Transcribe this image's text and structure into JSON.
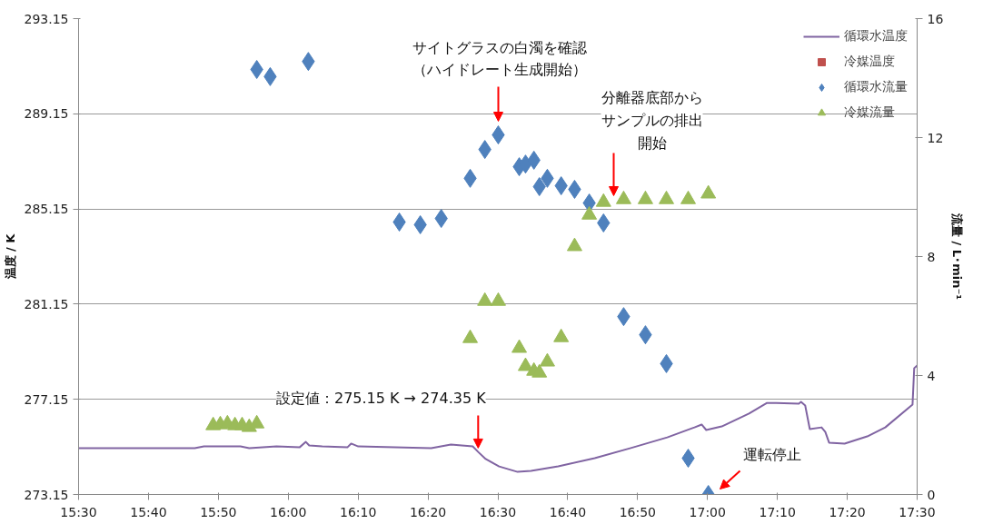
{
  "chart_data": {
    "type": "line",
    "xlabel": null,
    "ylabel": "温度 / K",
    "y2label": "流量 / L･min⁻¹",
    "xlim": [
      15.5,
      17.5
    ],
    "xticks": [
      {
        "value": 15.5,
        "label": "15:30"
      },
      {
        "value": 15.66667,
        "label": "15:40"
      },
      {
        "value": 15.83333,
        "label": "15:50"
      },
      {
        "value": 16.0,
        "label": "16:00"
      },
      {
        "value": 16.16667,
        "label": "16:10"
      },
      {
        "value": 16.33333,
        "label": "16:20"
      },
      {
        "value": 16.5,
        "label": "16:30"
      },
      {
        "value": 16.66667,
        "label": "16:40"
      },
      {
        "value": 16.83333,
        "label": "16:50"
      },
      {
        "value": 17.0,
        "label": "17:00"
      },
      {
        "value": 17.16667,
        "label": "17:10"
      },
      {
        "value": 17.33333,
        "label": "17:20"
      },
      {
        "value": 17.5,
        "label": "17:30"
      }
    ],
    "ylim": [
      273.15,
      293.15
    ],
    "yticks": [
      {
        "value": 273.15,
        "label": "273.15"
      },
      {
        "value": 277.15,
        "label": "277.15"
      },
      {
        "value": 281.15,
        "label": "281.15"
      },
      {
        "value": 285.15,
        "label": "285.15"
      },
      {
        "value": 289.15,
        "label": "289.15"
      },
      {
        "value": 293.15,
        "label": "293.15"
      }
    ],
    "y2lim": [
      0,
      16
    ],
    "y2ticks": [
      0,
      4,
      8,
      12,
      16
    ],
    "grid": "y",
    "legend": "top right",
    "series": [
      {
        "name": "循環水温度",
        "color": "#8064a2",
        "x": [
          15.5,
          15.691,
          15.777,
          15.799,
          15.886,
          15.907,
          15.972,
          16.027,
          16.042,
          16.05,
          16.081,
          16.141,
          16.15,
          16.167,
          16.341,
          16.388,
          16.414,
          16.44,
          16.453,
          16.471,
          16.503,
          16.547,
          16.579,
          16.644,
          16.731,
          16.817,
          16.904,
          16.969,
          16.986,
          16.997,
          17.034,
          17.099,
          17.142,
          17.164,
          17.218,
          17.223,
          17.233,
          17.244,
          17.272,
          17.281,
          17.29,
          17.327,
          17.381,
          17.424,
          17.489,
          17.493,
          17.5
        ],
        "values": [
          275.1,
          275.1,
          275.1,
          275.17,
          275.17,
          275.1,
          275.17,
          275.13,
          275.36,
          275.21,
          275.17,
          275.13,
          275.29,
          275.17,
          275.1,
          275.25,
          275.21,
          275.17,
          274.94,
          274.64,
          274.33,
          274.1,
          274.14,
          274.33,
          274.68,
          275.1,
          275.55,
          275.97,
          276.09,
          275.86,
          276.01,
          276.55,
          277.0,
          277.0,
          276.97,
          277.04,
          276.89,
          275.9,
          275.97,
          275.78,
          275.33,
          275.29,
          275.59,
          275.97,
          276.93,
          278.46,
          278.57
        ]
      },
      {
        "name": "冷媒温度",
        "type": "scatter",
        "marker": "square",
        "color": "#c0504d"
      },
      {
        "name": "循環水流量",
        "type": "scatter",
        "marker": "diamond",
        "color": "#4f81bd",
        "axis": "y2",
        "x": [
          15.925,
          15.957,
          16.048,
          16.265,
          16.315,
          16.365,
          16.434,
          16.469,
          16.501,
          16.551,
          16.566,
          16.586,
          16.599,
          16.618,
          16.651,
          16.683,
          16.718,
          16.752,
          16.8,
          16.852,
          16.902,
          16.954,
          17.002
        ],
        "values": [
          14.29,
          14.05,
          14.56,
          9.16,
          9.07,
          9.28,
          10.63,
          11.6,
          12.09,
          11.02,
          11.11,
          11.24,
          10.35,
          10.63,
          10.38,
          10.26,
          9.8,
          9.13,
          5.98,
          5.37,
          4.4,
          1.22,
          0
        ]
      },
      {
        "name": "冷媒流量",
        "type": "scatter",
        "marker": "triangle",
        "color": "#9bbb59",
        "axis": "y2",
        "x": [
          15.821,
          15.838,
          15.855,
          15.873,
          15.89,
          15.907,
          15.925,
          16.434,
          16.469,
          16.501,
          16.551,
          16.566,
          16.586,
          16.599,
          16.618,
          16.651,
          16.683,
          16.718,
          16.752,
          16.8,
          16.852,
          16.902,
          16.954,
          17.002
        ],
        "values": [
          2.32,
          2.35,
          2.38,
          2.32,
          2.32,
          2.26,
          2.38,
          5.25,
          6.5,
          6.5,
          4.92,
          4.31,
          4.15,
          4.09,
          4.46,
          5.28,
          8.34,
          9.4,
          9.83,
          9.92,
          9.92,
          9.92,
          9.92,
          10.11
        ]
      }
    ],
    "annotations": [
      "サイトグラスの白濁を確認（ハイドレート生成開始）",
      "分離器底部からサンプルの排出開始",
      {
        "text": "設定値：275.15 K → 274.35 K",
        "x": 16.453,
        "y": 275.1
      },
      "運転停止"
    ]
  }
}
